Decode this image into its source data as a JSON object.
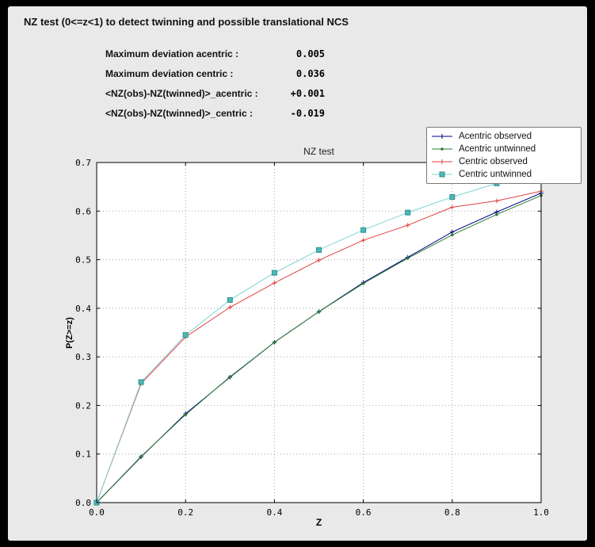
{
  "window": {
    "title": "NZ test (0<=z<1) to detect twinning and possible translational NCS"
  },
  "stats": {
    "rows": [
      {
        "label": "Maximum deviation acentric :",
        "value": "0.005"
      },
      {
        "label": "Maximum deviation centric :",
        "value": "0.036"
      },
      {
        "label": "<NZ(obs)-NZ(twinned)>_acentric :",
        "value": "+0.001"
      },
      {
        "label": "<NZ(obs)-NZ(twinned)>_centric :",
        "value": "-0.019"
      }
    ]
  },
  "chart_data": {
    "type": "line",
    "title": "NZ test",
    "xlabel": "Z",
    "ylabel": "P(Z>=z)",
    "xlim": [
      0.0,
      1.0
    ],
    "ylim": [
      0.0,
      0.7
    ],
    "xticks": [
      0.0,
      0.2,
      0.4,
      0.6,
      0.8,
      1.0
    ],
    "yticks": [
      0.0,
      0.1,
      0.2,
      0.3,
      0.4,
      0.5,
      0.6,
      0.7
    ],
    "grid": "dotted",
    "legend_position": "top-right",
    "x": [
      0.0,
      0.1,
      0.2,
      0.3,
      0.4,
      0.5,
      0.6,
      0.7,
      0.8,
      0.9,
      1.0
    ],
    "series": [
      {
        "name": "Acentric observed",
        "color": "#00008b",
        "marker": "plus",
        "values": [
          0.0,
          0.094,
          0.183,
          0.258,
          0.33,
          0.393,
          0.453,
          0.505,
          0.557,
          0.598,
          0.637
        ]
      },
      {
        "name": "Acentric untwinned",
        "color": "#2e7d2e",
        "marker": "dot",
        "values": [
          0.0,
          0.095,
          0.181,
          0.259,
          0.33,
          0.393,
          0.451,
          0.503,
          0.551,
          0.593,
          0.632
        ]
      },
      {
        "name": "Centric observed",
        "color": "#e04040",
        "marker": "plus",
        "values": [
          0.0,
          0.245,
          0.341,
          0.402,
          0.452,
          0.499,
          0.54,
          0.571,
          0.608,
          0.621,
          0.641
        ]
      },
      {
        "name": "Centric untwinned",
        "color": "#7fd4d4",
        "marker": "square",
        "marker_fill": "#4db8b8",
        "marker_edge": "#2f8f8f",
        "values": [
          0.0,
          0.248,
          0.345,
          0.417,
          0.473,
          0.52,
          0.561,
          0.597,
          0.629,
          0.657,
          0.683
        ]
      }
    ]
  }
}
